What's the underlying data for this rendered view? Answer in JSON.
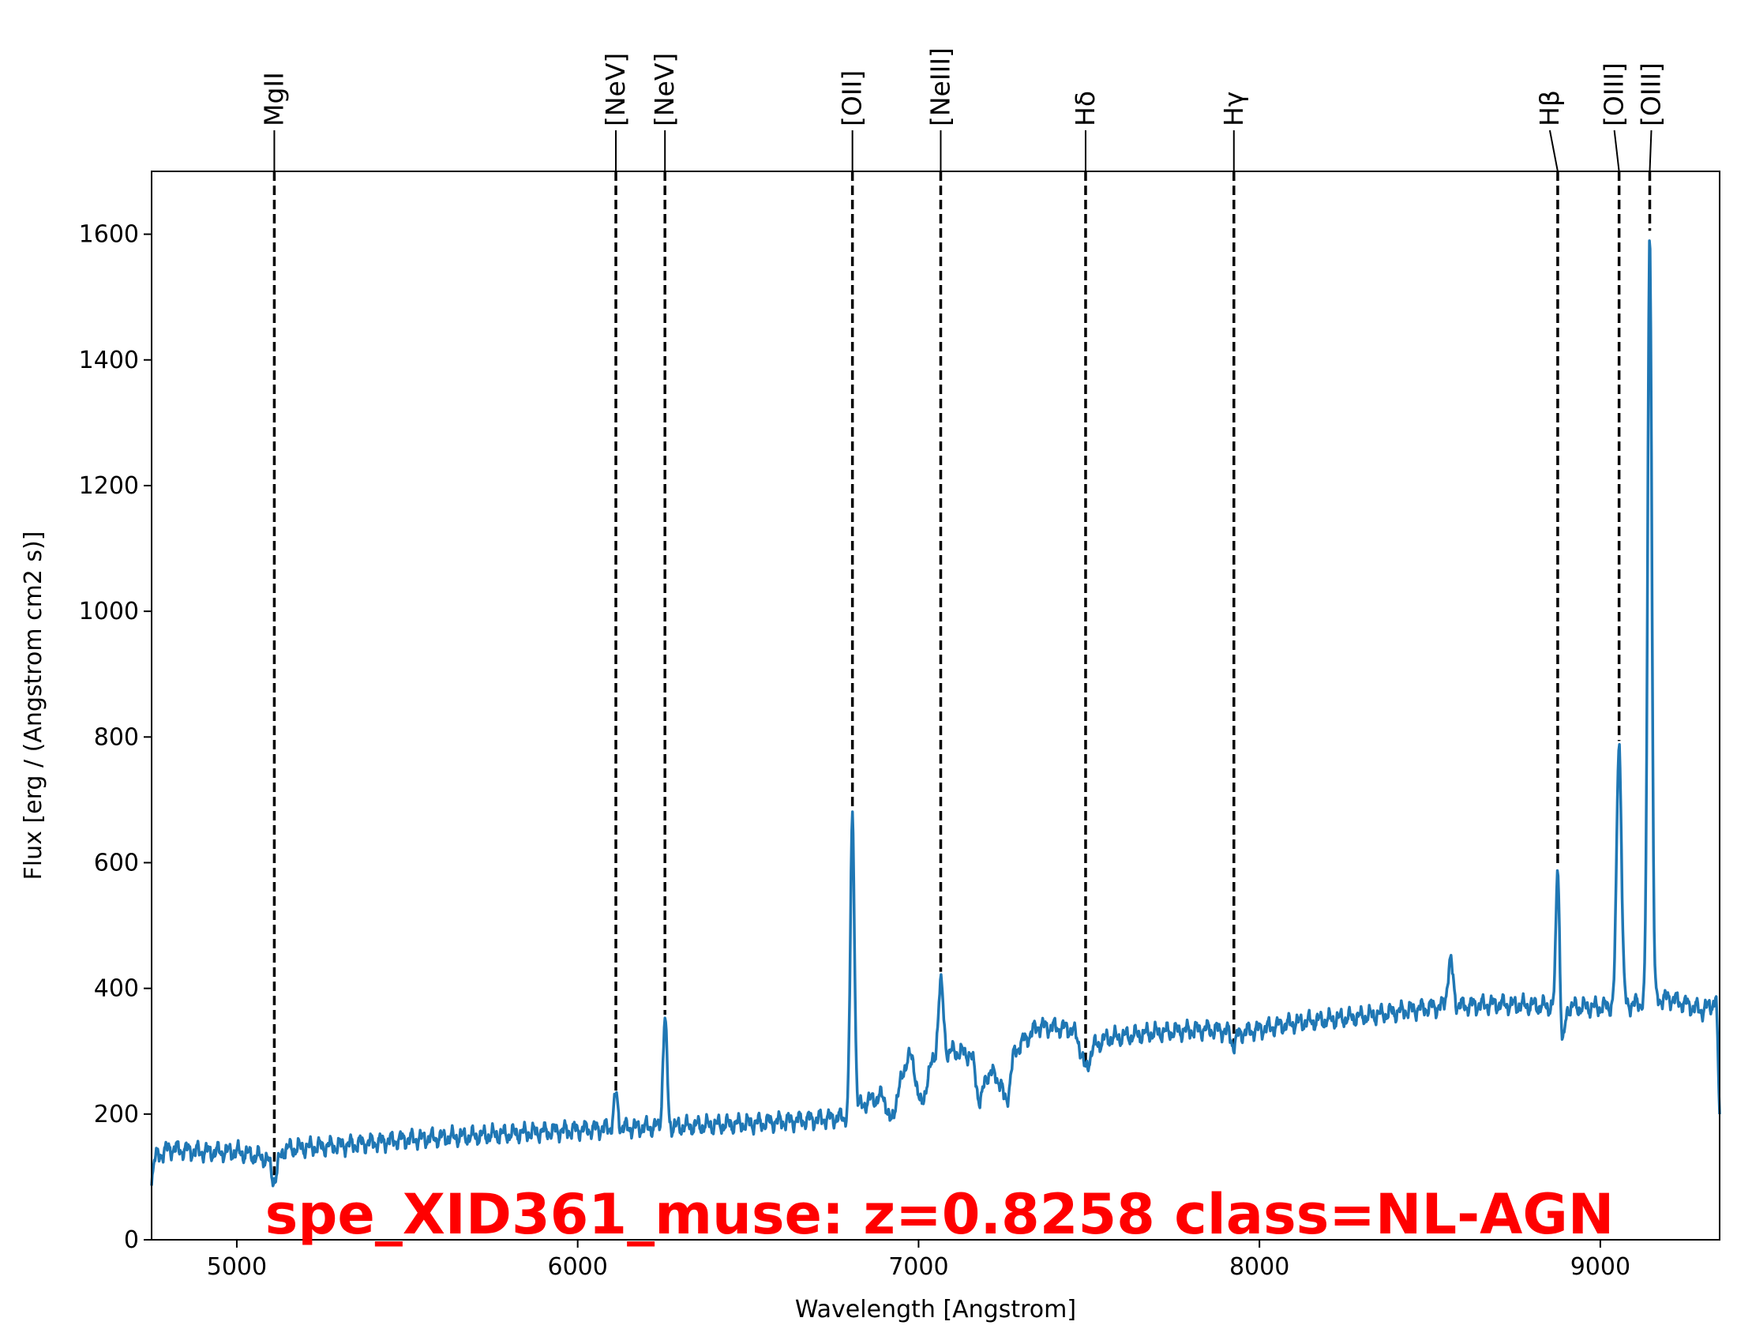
{
  "chart_data": {
    "type": "line",
    "xlabel": "Wavelength [Angstrom]",
    "ylabel": "Flux [erg / (Angstrom cm2 s)]",
    "xlim": [
      4750,
      9350
    ],
    "ylim": [
      0,
      1700
    ],
    "xticks": [
      5000,
      6000,
      7000,
      8000,
      9000
    ],
    "yticks": [
      0,
      200,
      400,
      600,
      800,
      1000,
      1200,
      1400,
      1600
    ],
    "grid": false,
    "annotation": {
      "text": "spe_XID361_muse: z=0.8258 class=NL-AGN",
      "color": "#ff0000"
    },
    "series_color": "#1f77b4",
    "emission_lines": [
      {
        "label": "MgII",
        "x": 5110
      },
      {
        "label": "[NeV]",
        "x": 6112
      },
      {
        "label": "[NeV]",
        "x": 6256
      },
      {
        "label": "[OII]",
        "x": 6806
      },
      {
        "label": "[NeIII]",
        "x": 7065
      },
      {
        "label": "Hδ",
        "x": 7490
      },
      {
        "label": "Hγ",
        "x": 7925
      },
      {
        "label": "Hβ",
        "x": 8875
      },
      {
        "label": "[OIII]",
        "x": 9055
      },
      {
        "label": "[OIII]",
        "x": 9145
      }
    ],
    "continuum": [
      [
        4750,
        100
      ],
      [
        4760,
        130
      ],
      [
        4800,
        145
      ],
      [
        4900,
        140
      ],
      [
        5000,
        140
      ],
      [
        5080,
        130
      ],
      [
        5150,
        145
      ],
      [
        5300,
        150
      ],
      [
        5500,
        160
      ],
      [
        5700,
        165
      ],
      [
        5900,
        172
      ],
      [
        6100,
        178
      ],
      [
        6300,
        180
      ],
      [
        6500,
        185
      ],
      [
        6700,
        192
      ],
      [
        6790,
        195
      ],
      [
        6850,
        220
      ],
      [
        6900,
        230
      ],
      [
        6960,
        250
      ],
      [
        7000,
        270
      ],
      [
        7050,
        280
      ],
      [
        7100,
        300
      ],
      [
        7150,
        295
      ],
      [
        7200,
        270
      ],
      [
        7250,
        250
      ],
      [
        7280,
        300
      ],
      [
        7350,
        340
      ],
      [
        7450,
        335
      ],
      [
        7490,
        300
      ],
      [
        7550,
        320
      ],
      [
        7700,
        330
      ],
      [
        7850,
        335
      ],
      [
        7950,
        330
      ],
      [
        8100,
        345
      ],
      [
        8300,
        355
      ],
      [
        8500,
        370
      ],
      [
        8700,
        375
      ],
      [
        8900,
        370
      ],
      [
        9000,
        370
      ],
      [
        9100,
        375
      ],
      [
        9200,
        385
      ],
      [
        9300,
        365
      ],
      [
        9340,
        380
      ],
      [
        9350,
        200
      ]
    ],
    "features": [
      {
        "x": 5110,
        "amp": -40,
        "w": 10
      },
      {
        "x": 6112,
        "amp": 50,
        "w": 6
      },
      {
        "x": 6256,
        "amp": 170,
        "w": 6
      },
      {
        "x": 6806,
        "amp": 470,
        "w": 6
      },
      {
        "x": 6920,
        "amp": -50,
        "w": 10
      },
      {
        "x": 6970,
        "amp": 40,
        "w": 10
      },
      {
        "x": 7010,
        "amp": -60,
        "w": 10
      },
      {
        "x": 7065,
        "amp": 120,
        "w": 8
      },
      {
        "x": 7180,
        "amp": -60,
        "w": 10
      },
      {
        "x": 7260,
        "amp": -40,
        "w": 10
      },
      {
        "x": 7490,
        "amp": -30,
        "w": 10
      },
      {
        "x": 7925,
        "amp": -20,
        "w": 8
      },
      {
        "x": 8560,
        "amp": 70,
        "w": 8
      },
      {
        "x": 8875,
        "amp": 230,
        "w": 5
      },
      {
        "x": 8890,
        "amp": -60,
        "w": 6
      },
      {
        "x": 9055,
        "amp": 420,
        "w": 7
      },
      {
        "x": 9145,
        "amp": 1230,
        "w": 6
      }
    ]
  }
}
